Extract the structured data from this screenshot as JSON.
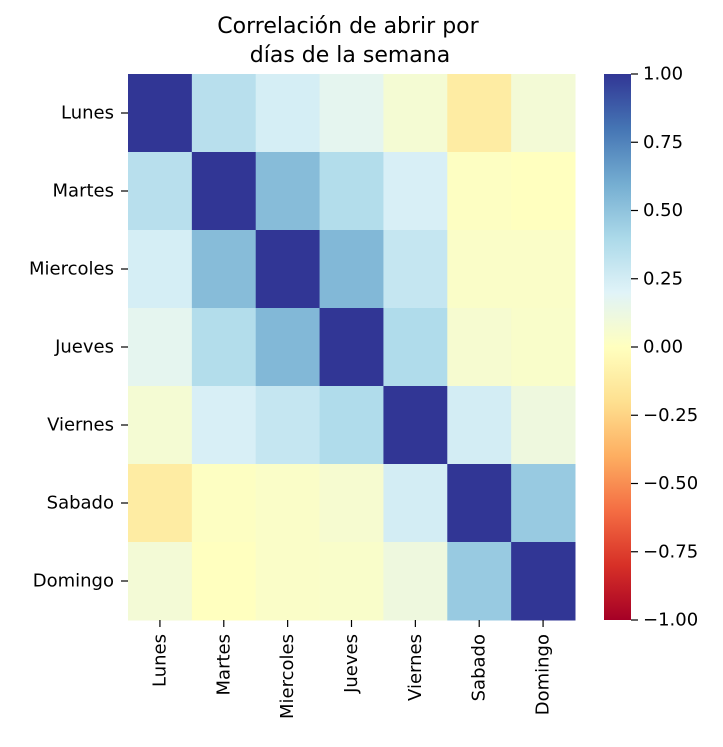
{
  "chart_data": {
    "type": "heatmap",
    "title_lines": [
      "Correlación de abrir por",
      "días de la semana"
    ],
    "x_categories": [
      "Lunes",
      "Martes",
      "Miercoles",
      "Jueves",
      "Viernes",
      "Sabado",
      "Domingo"
    ],
    "y_categories": [
      "Lunes",
      "Martes",
      "Miercoles",
      "Jueves",
      "Viernes",
      "Sabado",
      "Domingo"
    ],
    "values": [
      [
        1.0,
        0.35,
        0.24,
        0.17,
        0.07,
        -0.12,
        0.08
      ],
      [
        0.35,
        1.0,
        0.53,
        0.37,
        0.23,
        0.01,
        0.0
      ],
      [
        0.24,
        0.53,
        1.0,
        0.55,
        0.3,
        0.03,
        0.03
      ],
      [
        0.17,
        0.37,
        0.55,
        1.0,
        0.38,
        0.06,
        0.04
      ],
      [
        0.07,
        0.23,
        0.3,
        0.38,
        1.0,
        0.25,
        0.11
      ],
      [
        -0.12,
        0.01,
        0.03,
        0.06,
        0.25,
        1.0,
        0.47
      ],
      [
        0.08,
        0.0,
        0.03,
        0.04,
        0.11,
        0.47,
        1.0
      ]
    ],
    "vmin": -1.0,
    "vmax": 1.0,
    "colormap": "RdYlBu",
    "colorbar_ticks": [
      {
        "value": 1.0,
        "label": "1.00"
      },
      {
        "value": 0.75,
        "label": "0.75"
      },
      {
        "value": 0.5,
        "label": "0.50"
      },
      {
        "value": 0.25,
        "label": "0.25"
      },
      {
        "value": 0.0,
        "label": "0.00"
      },
      {
        "value": -0.25,
        "label": "−0.25"
      },
      {
        "value": -0.5,
        "label": "−0.50"
      },
      {
        "value": -0.75,
        "label": "−0.75"
      },
      {
        "value": -1.0,
        "label": "−1.00"
      }
    ],
    "colormap_stops": [
      {
        "t": 0.0,
        "color": "#a50026"
      },
      {
        "t": 0.1,
        "color": "#d73027"
      },
      {
        "t": 0.2,
        "color": "#f46d43"
      },
      {
        "t": 0.3,
        "color": "#fdae61"
      },
      {
        "t": 0.4,
        "color": "#fee090"
      },
      {
        "t": 0.5,
        "color": "#ffffbf"
      },
      {
        "t": 0.6,
        "color": "#e0f3f8"
      },
      {
        "t": 0.7,
        "color": "#abd9e9"
      },
      {
        "t": 0.8,
        "color": "#74add1"
      },
      {
        "t": 0.9,
        "color": "#4575b4"
      },
      {
        "t": 1.0,
        "color": "#313695"
      }
    ]
  }
}
